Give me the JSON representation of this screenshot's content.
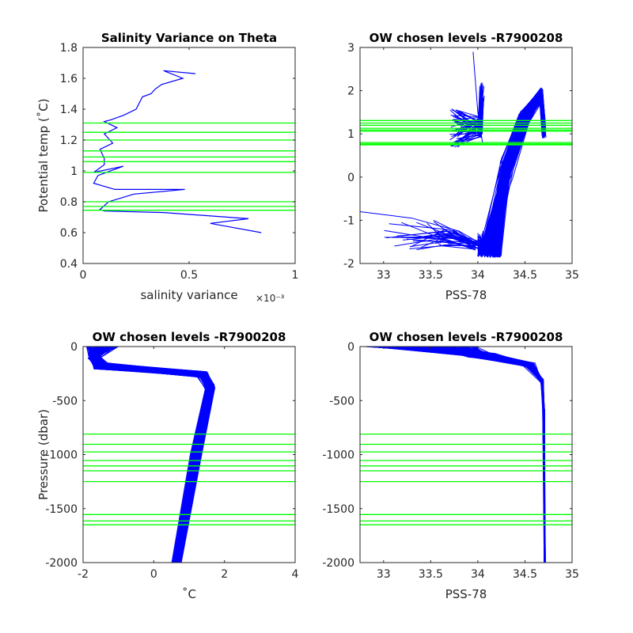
{
  "chart_data": [
    {
      "type": "line",
      "title": "Salinity Variance on Theta",
      "xlabel": "salinity variance",
      "x_exponent": "×10⁻³",
      "ylabel": "Potential temp (˚C)",
      "xlim": [
        0,
        1
      ],
      "ylim": [
        0.4,
        1.8
      ],
      "xticks": [
        0,
        0.5,
        1
      ],
      "xtick_labels": [
        "0",
        "0.5",
        "1"
      ],
      "yticks": [
        0.4,
        0.6,
        0.8,
        1.0,
        1.2,
        1.4,
        1.6,
        1.8
      ],
      "ytick_labels": [
        "0.4",
        "0.6",
        "0.8",
        "1",
        "1.2",
        "1.4",
        "1.6",
        "1.8"
      ],
      "series": [
        {
          "color": "#0000ff",
          "points": [
            [
              0.53,
              1.63
            ],
            [
              0.38,
              1.65
            ],
            [
              0.47,
              1.6
            ],
            [
              0.37,
              1.56
            ],
            [
              0.34,
              1.53
            ],
            [
              0.32,
              1.5
            ],
            [
              0.28,
              1.48
            ],
            [
              0.25,
              1.4
            ],
            [
              0.19,
              1.36
            ],
            [
              0.13,
              1.33
            ],
            [
              0.1,
              1.32
            ],
            [
              0.16,
              1.28
            ],
            [
              0.1,
              1.24
            ],
            [
              0.14,
              1.18
            ],
            [
              0.08,
              1.14
            ],
            [
              0.1,
              1.08
            ],
            [
              0.1,
              1.04
            ],
            [
              0.05,
              0.99
            ],
            [
              0.19,
              1.03
            ],
            [
              0.07,
              0.97
            ],
            [
              0.05,
              0.92
            ],
            [
              0.15,
              0.88
            ],
            [
              0.48,
              0.88
            ],
            [
              0.24,
              0.85
            ],
            [
              0.12,
              0.8
            ],
            [
              0.08,
              0.75
            ],
            [
              0.1,
              0.74
            ],
            [
              0.38,
              0.73
            ],
            [
              0.78,
              0.69
            ],
            [
              0.6,
              0.66
            ],
            [
              0.68,
              0.64
            ],
            [
              0.84,
              0.6
            ]
          ]
        }
      ],
      "hlines": [
        1.31,
        1.25,
        1.2,
        1.13,
        1.09,
        1.06,
        0.99,
        0.8,
        0.77,
        0.745
      ],
      "hline_color": "#00ff00"
    },
    {
      "type": "line",
      "title": "OW chosen levels -R7900208",
      "xlabel": "PSS-78",
      "ylabel": "",
      "xlim": [
        32.75,
        35
      ],
      "ylim": [
        -2,
        3
      ],
      "xticks": [
        33,
        33.5,
        34,
        34.5,
        35
      ],
      "xtick_labels": [
        "33",
        "33.5",
        "34",
        "34.5",
        "35"
      ],
      "yticks": [
        -2,
        -1,
        0,
        1,
        2,
        3
      ],
      "ytick_labels": [
        "-2",
        "-1",
        "0",
        "1",
        "2",
        "3"
      ],
      "profile_color": "#0000ff",
      "hlines": [
        1.31,
        1.25,
        1.2,
        1.13,
        1.09,
        1.06,
        0.8,
        0.77,
        0.745
      ],
      "hline_color": "#00ff00"
    },
    {
      "type": "line",
      "title": "OW chosen levels -R7900208",
      "xlabel": "˚C",
      "ylabel": "Pressure (dbar)",
      "xlim": [
        -2,
        4
      ],
      "ylim": [
        -2000,
        0
      ],
      "xticks": [
        -2,
        0,
        2,
        4
      ],
      "xtick_labels": [
        "-2",
        "0",
        "2",
        "4"
      ],
      "yticks": [
        -2000,
        -1500,
        -1000,
        -500,
        0
      ],
      "ytick_labels": [
        "-2000",
        "-1500",
        "-1000",
        "-500",
        "0"
      ],
      "profile_color": "#0000ff",
      "hlines": [
        -810,
        -905,
        -975,
        -1055,
        -1105,
        -1150,
        -1250,
        -1555,
        -1615,
        -1650
      ],
      "hline_color": "#00ff00"
    },
    {
      "type": "line",
      "title": "OW chosen levels -R7900208",
      "xlabel": "PSS-78",
      "ylabel": "",
      "xlim": [
        32.75,
        35
      ],
      "ylim": [
        -2000,
        0
      ],
      "xticks": [
        33,
        33.5,
        34,
        34.5,
        35
      ],
      "xtick_labels": [
        "33",
        "33.5",
        "34",
        "34.5",
        "35"
      ],
      "yticks": [
        -2000,
        -1500,
        -1000,
        -500,
        0
      ],
      "ytick_labels": [
        "-2000",
        "-1500",
        "-1000",
        "-500",
        "0"
      ],
      "profile_color": "#0000ff",
      "hlines": [
        -810,
        -905,
        -975,
        -1055,
        -1105,
        -1150,
        -1250,
        -1555,
        -1615,
        -1650
      ],
      "hline_color": "#00ff00"
    }
  ]
}
